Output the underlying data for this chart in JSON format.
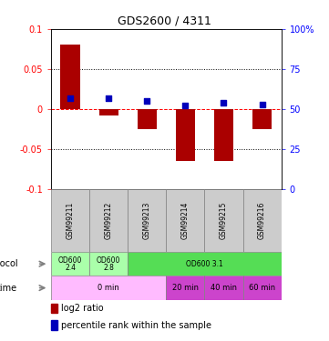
{
  "title": "GDS2600 / 4311",
  "samples": [
    "GSM99211",
    "GSM99212",
    "GSM99213",
    "GSM99214",
    "GSM99215",
    "GSM99216"
  ],
  "log2_ratio": [
    0.08,
    -0.008,
    -0.025,
    -0.065,
    -0.065,
    -0.025
  ],
  "percentile_rank": [
    57,
    57,
    55,
    52,
    54,
    53
  ],
  "ylim_left": [
    -0.1,
    0.1
  ],
  "ylim_right": [
    0,
    100
  ],
  "yticks_left": [
    -0.1,
    -0.05,
    0,
    0.05,
    0.1
  ],
  "yticks_right": [
    0,
    25,
    50,
    75,
    100
  ],
  "bar_color": "#aa0000",
  "dot_color": "#0000bb",
  "proto_data": [
    {
      "label": "OD600\n2.4",
      "span": 1,
      "color": "#aaffaa"
    },
    {
      "label": "OD600\n2.8",
      "span": 1,
      "color": "#aaffaa"
    },
    {
      "label": "OD600 3.1",
      "span": 4,
      "color": "#55dd55"
    }
  ],
  "time_data": [
    {
      "label": "0 min",
      "span": 3,
      "color": "#ffbbff"
    },
    {
      "label": "20 min",
      "span": 1,
      "color": "#cc44cc"
    },
    {
      "label": "40 min",
      "span": 1,
      "color": "#cc44cc"
    },
    {
      "label": "60 min",
      "span": 1,
      "color": "#cc44cc"
    }
  ],
  "sample_bg": "#cccccc",
  "legend_text1": "log2 ratio",
  "legend_text2": "percentile rank within the sample"
}
